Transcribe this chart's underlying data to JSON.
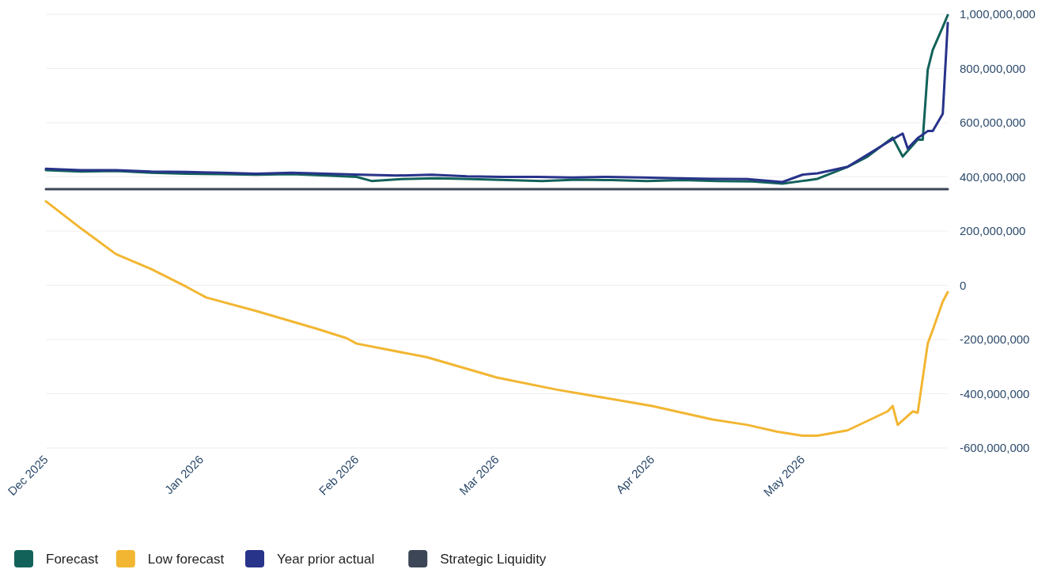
{
  "chart_data": {
    "type": "line",
    "xlim": [
      "2025-12-01",
      "2026-05-30"
    ],
    "xticks": [
      {
        "value": "2025-12-01",
        "label": "Dec 2025"
      },
      {
        "value": "2026-01-01",
        "label": "Jan 2026"
      },
      {
        "value": "2026-02-01",
        "label": "Feb 2026"
      },
      {
        "value": "2026-03-01",
        "label": "Mar 2026"
      },
      {
        "value": "2026-04-01",
        "label": "Apr 2026"
      },
      {
        "value": "2026-05-01",
        "label": "May 2026"
      }
    ],
    "ylim": [
      -600000000,
      1000000000
    ],
    "yticks": [
      {
        "value": -600000000,
        "label": "-600,000,000"
      },
      {
        "value": -400000000,
        "label": "-400,000,000"
      },
      {
        "value": -200000000,
        "label": "-200,000,000"
      },
      {
        "value": 0,
        "label": "0"
      },
      {
        "value": 200000000,
        "label": "200,000,000"
      },
      {
        "value": 400000000,
        "label": "400,000,000"
      },
      {
        "value": 600000000,
        "label": "600,000,000"
      },
      {
        "value": 800000000,
        "label": "800,000,000"
      },
      {
        "value": 1000000000,
        "label": "1,000,000,000"
      }
    ],
    "grid": "y",
    "legend": "bottom left",
    "line_style": "solid",
    "series": [
      {
        "name": "Forecast",
        "color": "#12625a",
        "x": [
          "2025-12-01",
          "2025-12-08",
          "2025-12-15",
          "2025-12-22",
          "2025-12-29",
          "2026-01-05",
          "2026-01-12",
          "2026-01-19",
          "2026-01-26",
          "2026-02-01",
          "2026-02-04",
          "2026-02-10",
          "2026-02-17",
          "2026-02-24",
          "2026-03-03",
          "2026-03-10",
          "2026-03-17",
          "2026-03-24",
          "2026-03-31",
          "2026-04-07",
          "2026-04-14",
          "2026-04-21",
          "2026-04-27",
          "2026-05-01",
          "2026-05-04",
          "2026-05-10",
          "2026-05-14",
          "2026-05-19",
          "2026-05-21",
          "2026-05-24",
          "2026-05-25",
          "2026-05-26",
          "2026-05-27",
          "2026-05-29",
          "2026-05-30"
        ],
        "values": [
          425000000,
          420000000,
          422000000,
          415000000,
          412000000,
          410000000,
          408000000,
          410000000,
          405000000,
          400000000,
          385000000,
          392000000,
          395000000,
          392000000,
          388000000,
          385000000,
          390000000,
          388000000,
          385000000,
          388000000,
          385000000,
          383000000,
          375000000,
          385000000,
          393000000,
          437000000,
          475000000,
          545000000,
          475000000,
          537000000,
          537000000,
          795000000,
          868000000,
          953000000,
          997000000
        ]
      },
      {
        "name": "Low forecast",
        "color": "#f2b632",
        "x": [
          "2025-12-01",
          "2025-12-08",
          "2025-12-15",
          "2025-12-22",
          "2025-12-29",
          "2026-01-02",
          "2026-01-12",
          "2026-01-24",
          "2026-01-30",
          "2026-02-01",
          "2026-02-15",
          "2026-03-01",
          "2026-03-13",
          "2026-04-01",
          "2026-04-13",
          "2026-04-20",
          "2026-04-26",
          "2026-05-01",
          "2026-05-04",
          "2026-05-10",
          "2026-05-14",
          "2026-05-18",
          "2026-05-19",
          "2026-05-20",
          "2026-05-23",
          "2026-05-24",
          "2026-05-26",
          "2026-05-27",
          "2026-05-29",
          "2026-05-30"
        ],
        "values": [
          310000000,
          210000000,
          115000000,
          60000000,
          -5000000,
          -45000000,
          -95000000,
          -160000000,
          -195000000,
          -215000000,
          -265000000,
          -340000000,
          -385000000,
          -445000000,
          -495000000,
          -515000000,
          -540000000,
          -555000000,
          -555000000,
          -535000000,
          -500000000,
          -465000000,
          -445000000,
          -515000000,
          -465000000,
          -470000000,
          -215000000,
          -165000000,
          -60000000,
          -25000000
        ]
      },
      {
        "name": "Year prior actual",
        "color": "#28338a",
        "x": [
          "2025-12-01",
          "2025-12-08",
          "2025-12-15",
          "2025-12-22",
          "2025-12-29",
          "2026-01-05",
          "2026-01-12",
          "2026-01-19",
          "2026-01-26",
          "2026-02-02",
          "2026-02-09",
          "2026-02-16",
          "2026-02-23",
          "2026-03-02",
          "2026-03-09",
          "2026-03-16",
          "2026-03-23",
          "2026-03-30",
          "2026-04-06",
          "2026-04-13",
          "2026-04-20",
          "2026-04-27",
          "2026-05-01",
          "2026-05-04",
          "2026-05-10",
          "2026-05-18",
          "2026-05-21",
          "2026-05-22",
          "2026-05-24",
          "2026-05-26",
          "2026-05-27",
          "2026-05-29",
          "2026-05-30"
        ],
        "values": [
          430000000,
          425000000,
          425000000,
          420000000,
          418000000,
          415000000,
          412000000,
          415000000,
          412000000,
          408000000,
          405000000,
          408000000,
          402000000,
          400000000,
          400000000,
          398000000,
          400000000,
          398000000,
          395000000,
          393000000,
          392000000,
          381000000,
          408000000,
          413000000,
          437000000,
          528000000,
          560000000,
          505000000,
          543000000,
          569000000,
          569000000,
          633000000,
          968000000
        ]
      },
      {
        "name": "Strategic Liquidity",
        "color": "#3d4656",
        "x": [
          "2025-12-01",
          "2026-05-30"
        ],
        "values": [
          355000000,
          355000000
        ]
      }
    ]
  }
}
